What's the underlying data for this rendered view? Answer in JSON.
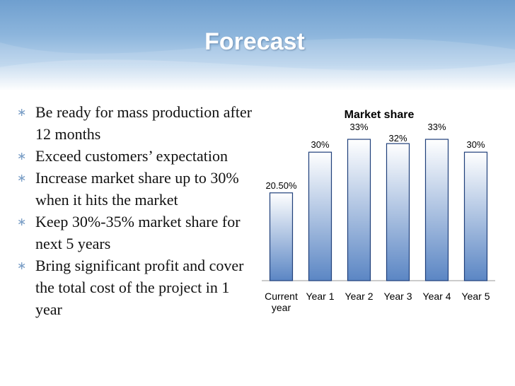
{
  "slide": {
    "title": "Forecast",
    "bullet_icon": "asterisk-icon",
    "bullets": [
      "Be ready for mass production after 12 months",
      "Exceed customers’ expectation",
      "Increase market share up to 30% when it hits the market",
      "Keep 30%-35% market share for next 5 years",
      "Bring significant profit and cover the total cost of the project in 1 year"
    ]
  },
  "colors": {
    "banner": "#7fa9d6",
    "bar_fill_top": "#ffffff",
    "bar_fill_bottom": "#5b86c4",
    "bar_stroke": "#1f3f7a",
    "bullet_icon": "#7a9ec6"
  },
  "chart_data": {
    "type": "bar",
    "title": "Market share",
    "categories": [
      "Current year",
      "Year 1",
      "Year 2",
      "Year 3",
      "Year 4",
      "Year 5"
    ],
    "values": [
      20.5,
      30,
      33,
      32,
      33,
      30
    ],
    "data_labels": [
      "20.50%",
      "30%",
      "33%",
      "32%",
      "33%",
      "30%"
    ],
    "ylim": [
      0,
      34
    ],
    "xlabel": "",
    "ylabel": "",
    "grid": false,
    "legend": "none"
  }
}
